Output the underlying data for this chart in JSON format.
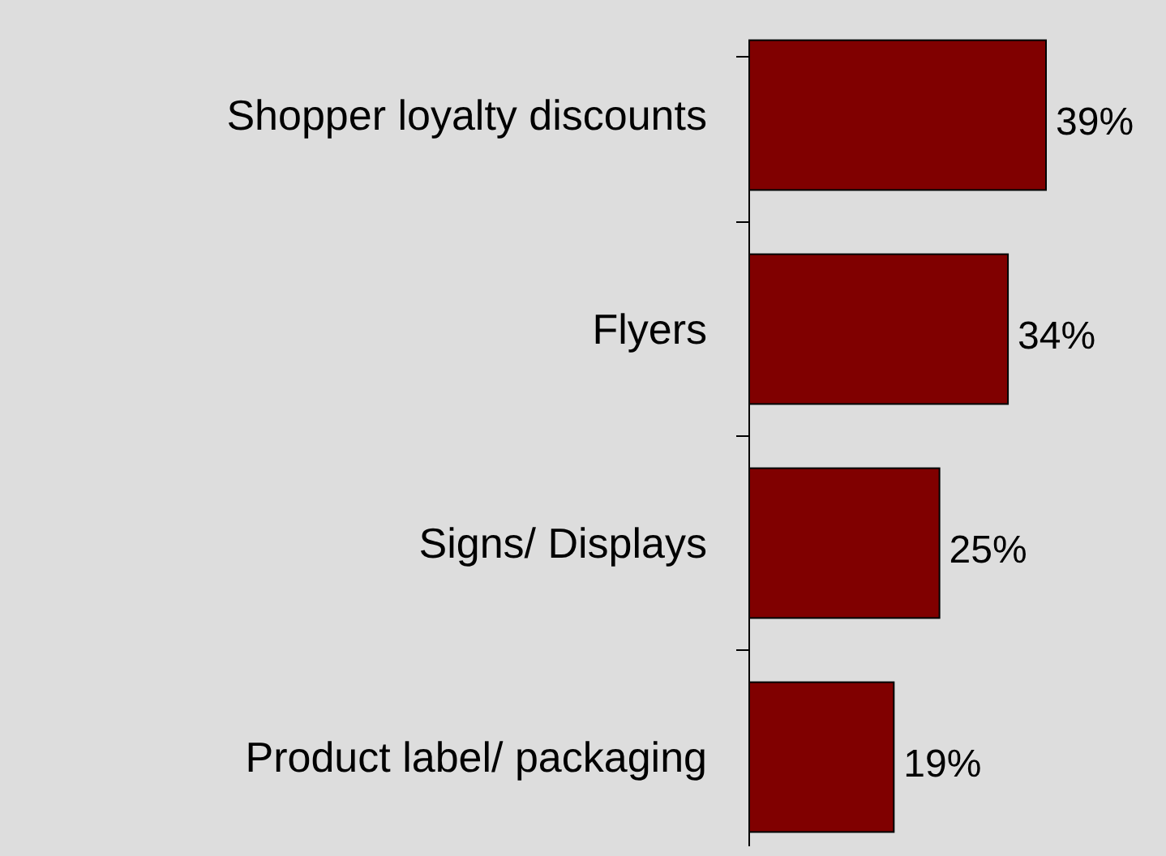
{
  "chart_data": {
    "type": "bar",
    "orientation": "horizontal",
    "categories": [
      "Shopper loyalty discounts",
      "Flyers",
      "Signs/ Displays",
      "Product label/ packaging"
    ],
    "values": [
      39,
      34,
      25,
      19
    ],
    "value_labels": [
      "39%",
      "34%",
      "25%",
      "19%"
    ],
    "color": "#800000"
  }
}
